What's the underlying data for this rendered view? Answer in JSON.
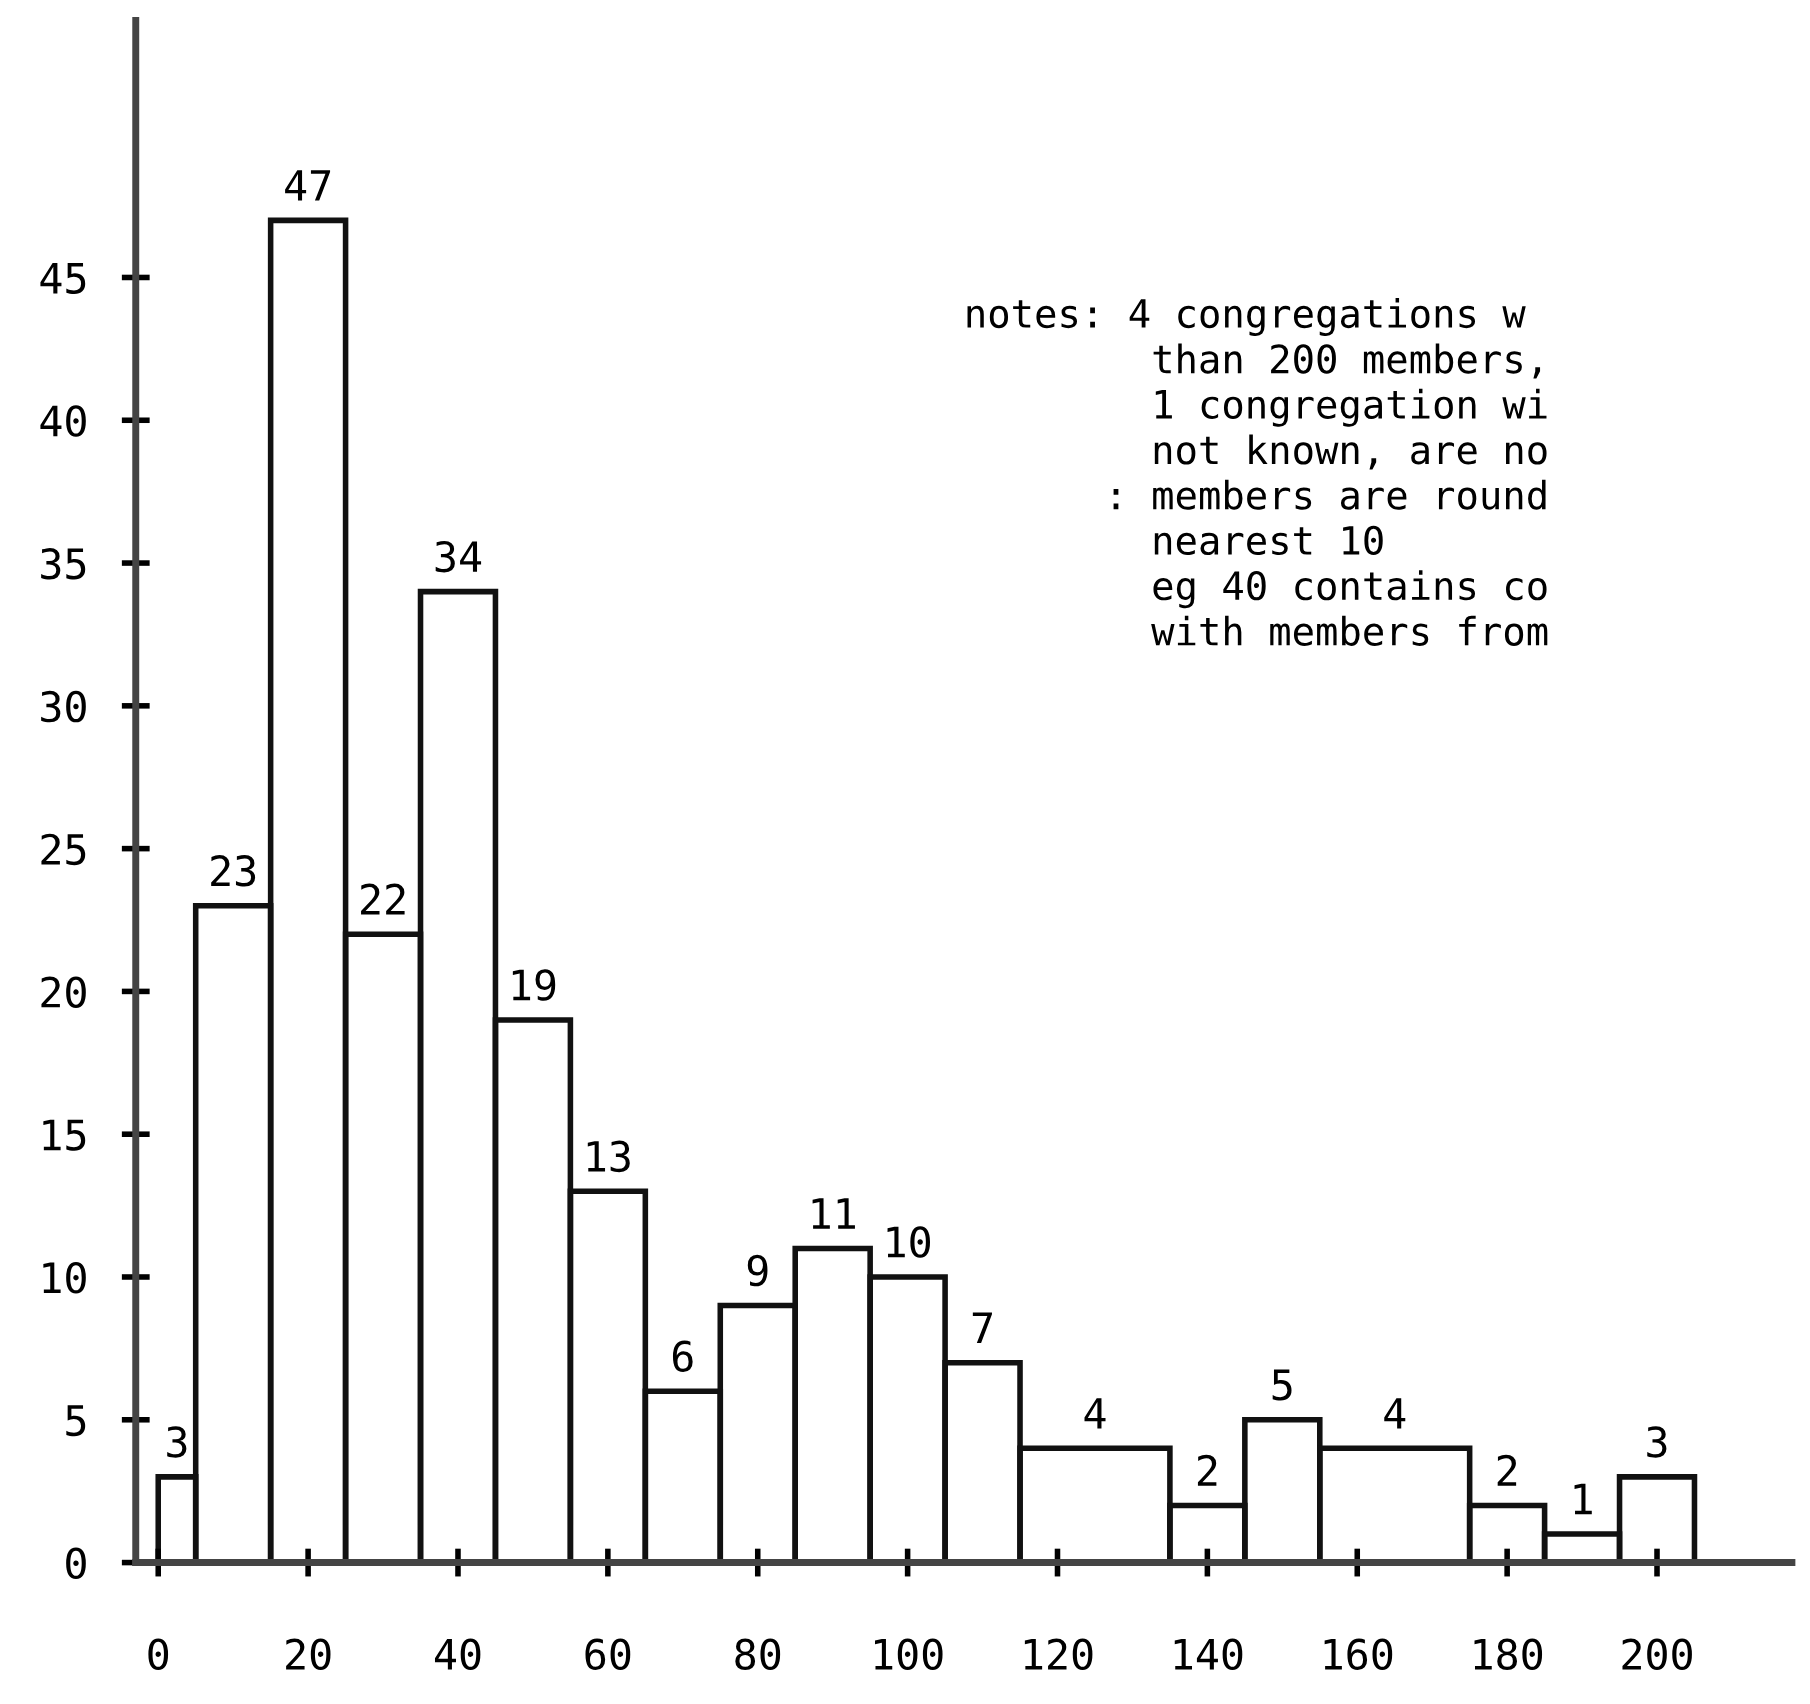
{
  "chart_data": {
    "type": "histogram",
    "bins": [
      0,
      5,
      15,
      25,
      35,
      45,
      55,
      65,
      75,
      85,
      95,
      105,
      115,
      135,
      145,
      155,
      175,
      185,
      195,
      205
    ],
    "values": [
      3,
      23,
      47,
      22,
      34,
      19,
      13,
      6,
      9,
      11,
      10,
      7,
      4,
      2,
      5,
      4,
      2,
      1,
      3
    ],
    "data_labels": true,
    "color": "#111111",
    "xlim": [
      -3,
      218
    ],
    "ylim": [
      0,
      54
    ],
    "xticks": [
      0,
      20,
      40,
      60,
      80,
      100,
      120,
      140,
      160,
      180,
      200
    ],
    "yticks": [
      0,
      5,
      10,
      15,
      20,
      25,
      30,
      35,
      40,
      45
    ],
    "grid": false,
    "annotations": [
      "notes: 4 congregations w",
      "        than 200 members,",
      "        1 congregation wi",
      "        not known, are no",
      "      : members are round",
      "        nearest 10",
      "        eg 40 contains co",
      "        with members from"
    ]
  }
}
